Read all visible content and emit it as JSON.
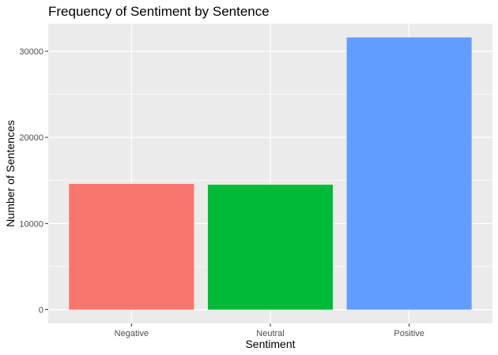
{
  "chart_data": {
    "type": "bar",
    "title": "Frequency of Sentiment by Sentence",
    "xlabel": "Sentiment",
    "ylabel": "Number of Sentences",
    "categories": [
      "Negative",
      "Neutral",
      "Positive"
    ],
    "values": [
      14600,
      14500,
      31600
    ],
    "colors": [
      "#F8766D",
      "#00BA38",
      "#619CFF"
    ],
    "ylim": [
      -1600,
      33200
    ],
    "yticks": [
      0,
      10000,
      20000,
      30000
    ],
    "ytick_labels": [
      "0",
      "10000",
      "20000",
      "30000"
    ],
    "panel_background": "#EBEBEB",
    "grid": true,
    "legend": "none"
  }
}
